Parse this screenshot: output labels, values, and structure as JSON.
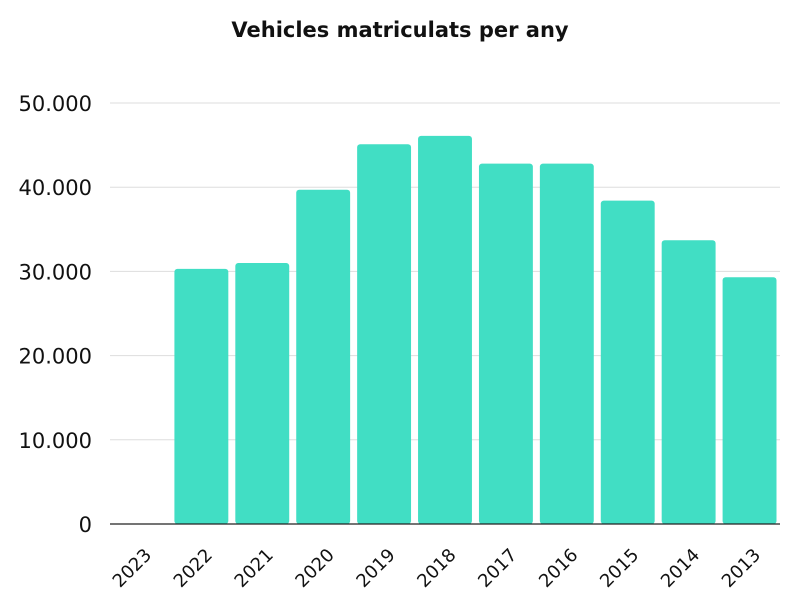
{
  "chart_data": {
    "type": "bar",
    "title": "Vehicles matriculats per any",
    "xlabel": "",
    "ylabel": "",
    "categories": [
      "2023",
      "2022",
      "2021",
      "2020",
      "2019",
      "2018",
      "2017",
      "2016",
      "2015",
      "2014",
      "2013"
    ],
    "values": [
      0,
      30300,
      31000,
      39700,
      45100,
      46100,
      42800,
      42800,
      38400,
      33700,
      29300
    ],
    "ylim": [
      0,
      50000
    ],
    "yticks": [
      0,
      10000,
      20000,
      30000,
      40000,
      50000
    ],
    "ytick_labels": [
      "0",
      "10.000",
      "20.000",
      "30.000",
      "40.000",
      "50.000"
    ],
    "grid": true,
    "legend": "none",
    "colors": {
      "bar": "#41DEC4",
      "grid": "#DDDDDD",
      "axis": "#222222",
      "text": "#111111"
    }
  }
}
